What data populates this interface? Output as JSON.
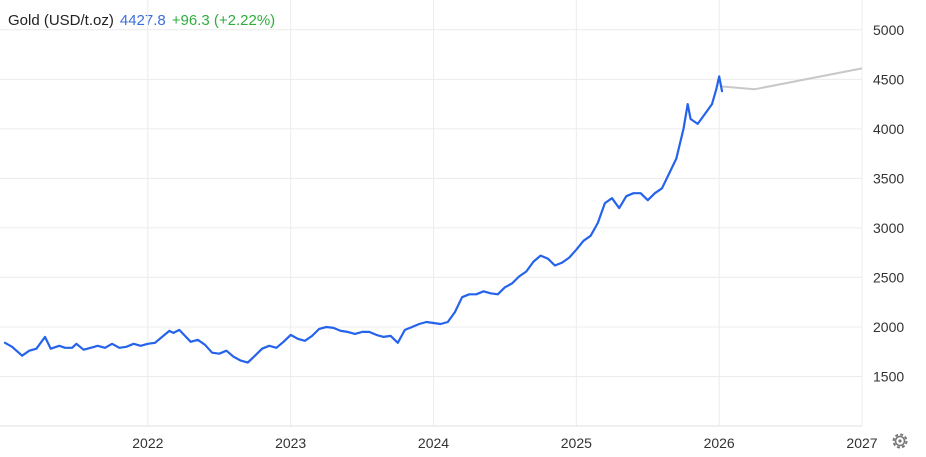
{
  "header": {
    "instrument": "Gold (USD/t.oz)",
    "price": "4427.8",
    "change": "+96.3 (+2.22%)"
  },
  "colors": {
    "series": "#2563eb",
    "forecast": "#c8c8c8",
    "price_text": "#3b6fd8",
    "change_text": "#2fae3d",
    "grid": "#ececec",
    "axis_text": "#333333",
    "header_text": "#222222"
  },
  "icons": {
    "settings": "gear-icon"
  },
  "chart_data": {
    "type": "line",
    "title": "Gold (USD/t.oz)",
    "xlim": [
      2021.0,
      2027.0
    ],
    "ylim": [
      1000,
      5200
    ],
    "y_ticks": [
      1500,
      2000,
      2500,
      3000,
      3500,
      4000,
      4500,
      5000
    ],
    "x_ticks": [
      2022,
      2023,
      2024,
      2025,
      2026,
      2027
    ],
    "x_tick_labels": [
      "2022",
      "2023",
      "2024",
      "2025",
      "2026",
      "2027"
    ],
    "grid": true,
    "y_axis_side": "right",
    "series": [
      {
        "x": [
          2021.0,
          2021.05,
          2021.12,
          2021.17,
          2021.22,
          2021.28,
          2021.32,
          2021.38,
          2021.42,
          2021.47,
          2021.5,
          2021.55,
          2021.6,
          2021.65,
          2021.7,
          2021.75,
          2021.8,
          2021.85,
          2021.9,
          2021.95,
          2022.0,
          2022.05,
          2022.1,
          2022.15,
          2022.18,
          2022.22,
          2022.26,
          2022.3,
          2022.35,
          2022.4,
          2022.45,
          2022.5,
          2022.55,
          2022.6,
          2022.65,
          2022.7,
          2022.75,
          2022.8,
          2022.85,
          2022.9,
          2022.95,
          2023.0,
          2023.05,
          2023.1,
          2023.15,
          2023.2,
          2023.25,
          2023.3,
          2023.35,
          2023.4,
          2023.45,
          2023.5,
          2023.55,
          2023.6,
          2023.65,
          2023.7,
          2023.75,
          2023.8,
          2023.85,
          2023.9,
          2023.95,
          2024.0,
          2024.05,
          2024.1,
          2024.15,
          2024.2,
          2024.25,
          2024.3,
          2024.35,
          2024.4,
          2024.45,
          2024.5,
          2024.55,
          2024.6,
          2024.65,
          2024.7,
          2024.75,
          2024.8,
          2024.85,
          2024.9,
          2024.95,
          2025.0,
          2025.05,
          2025.1,
          2025.15,
          2025.2,
          2025.25,
          2025.3,
          2025.35,
          2025.4,
          2025.45,
          2025.5,
          2025.55,
          2025.6,
          2025.65,
          2025.7,
          2025.75,
          2025.78,
          2025.8,
          2025.85,
          2025.9,
          2025.95,
          2025.98,
          2026.0,
          2026.02
        ],
        "values": [
          1840,
          1800,
          1710,
          1760,
          1780,
          1900,
          1780,
          1810,
          1790,
          1790,
          1830,
          1770,
          1790,
          1810,
          1790,
          1830,
          1790,
          1800,
          1830,
          1810,
          1830,
          1840,
          1900,
          1960,
          1940,
          1970,
          1910,
          1850,
          1870,
          1820,
          1740,
          1730,
          1760,
          1700,
          1660,
          1640,
          1710,
          1780,
          1810,
          1790,
          1850,
          1920,
          1880,
          1860,
          1910,
          1980,
          2000,
          1990,
          1960,
          1950,
          1930,
          1950,
          1950,
          1920,
          1900,
          1910,
          1840,
          1970,
          2000,
          2030,
          2050,
          2040,
          2030,
          2050,
          2150,
          2300,
          2330,
          2330,
          2360,
          2340,
          2330,
          2400,
          2440,
          2510,
          2560,
          2660,
          2720,
          2690,
          2620,
          2650,
          2700,
          2780,
          2870,
          2920,
          3050,
          3250,
          3300,
          3200,
          3320,
          3350,
          3350,
          3280,
          3350,
          3400,
          3550,
          3700,
          4000,
          4250,
          4100,
          4050,
          4150,
          4250,
          4400,
          4530,
          4380
        ]
      },
      {
        "x": [
          2026.02,
          2026.25,
          2027.0
        ],
        "values": [
          4427.8,
          4400,
          4610
        ]
      }
    ]
  }
}
